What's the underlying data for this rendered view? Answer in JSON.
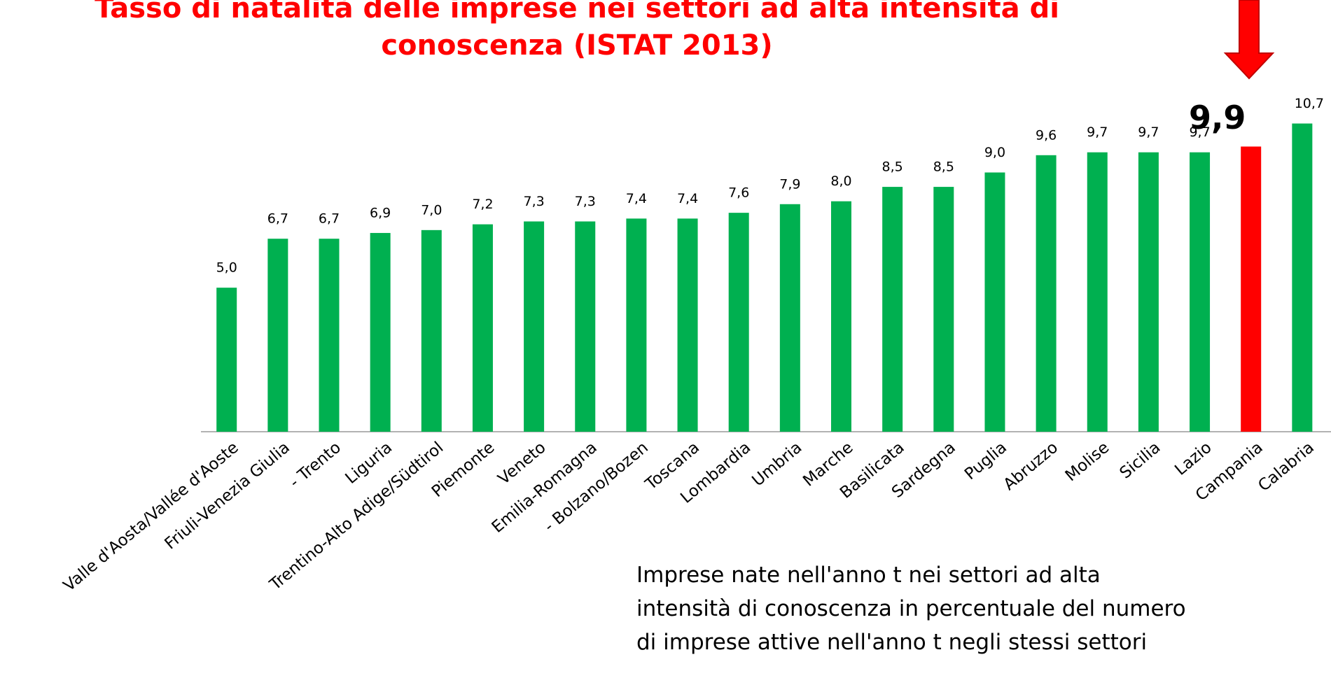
{
  "chart_data": {
    "type": "bar",
    "title_lines": [
      "Tasso di natalità delle imprese nei settori ad alta intensità di",
      "conoscenza (ISTAT 2013)"
    ],
    "categories": [
      "Valle d'Aosta/Vallée d'Aoste",
      "Friuli-Venezia Giulia",
      "- Trento",
      "Liguria",
      "Trentino-Alto Adige/Südtirol",
      "Piemonte",
      "Veneto",
      "Emilia-Romagna",
      "- Bolzano/Bozen",
      "Toscana",
      "Lombardia",
      "Umbria",
      "Marche",
      "Basilicata",
      "Sardegna",
      "Puglia",
      "Abruzzo",
      "Molise",
      "Sicilia",
      "Lazio",
      "Campania",
      "Calabria"
    ],
    "values": [
      5.0,
      6.7,
      6.7,
      6.9,
      7.0,
      7.2,
      7.3,
      7.3,
      7.4,
      7.4,
      7.6,
      7.9,
      8.0,
      8.5,
      8.5,
      9.0,
      9.6,
      9.7,
      9.7,
      9.7,
      9.9,
      10.7
    ],
    "value_labels": [
      "5,0",
      "6,7",
      "6,7",
      "6,9",
      "7,0",
      "7,2",
      "7,3",
      "7,3",
      "7,4",
      "7,4",
      "7,6",
      "7,9",
      "8,0",
      "8,5",
      "8,5",
      "9,0",
      "9,6",
      "9,7",
      "9,7",
      "9,7",
      "9,9",
      "10,7"
    ],
    "colors": [
      "#00b050",
      "#00b050",
      "#00b050",
      "#00b050",
      "#00b050",
      "#00b050",
      "#00b050",
      "#00b050",
      "#00b050",
      "#00b050",
      "#00b050",
      "#00b050",
      "#00b050",
      "#00b050",
      "#00b050",
      "#00b050",
      "#00b050",
      "#00b050",
      "#00b050",
      "#00b050",
      "#ff0000",
      "#00b050"
    ],
    "ylim": [
      0,
      12
    ],
    "annotation_lines": [
      "Imprese nate nell'anno t nei settori ad alta",
      "intensità di conoscenza in percentuale del numero",
      "di imprese attive nell'anno t negli stessi settori"
    ]
  }
}
